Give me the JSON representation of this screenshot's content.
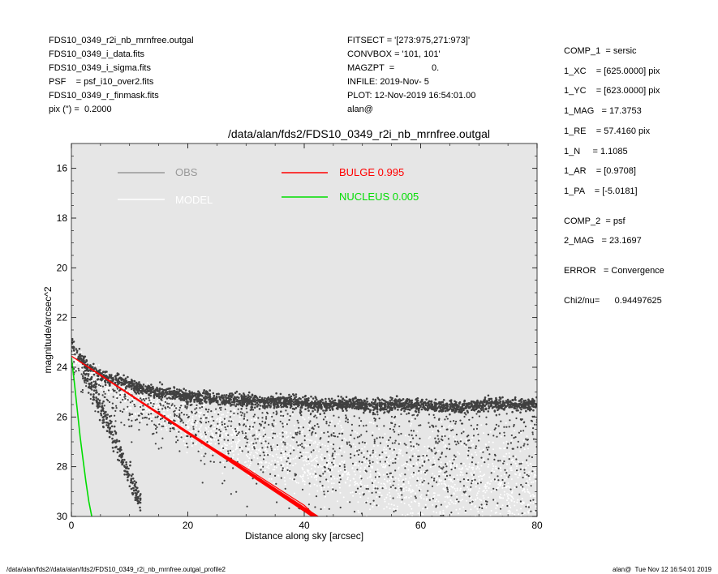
{
  "header_left": [
    "FDS10_0349_r2i_nb_mrnfree.outgal",
    "FDS10_0349_i_data.fits",
    "FDS10_0349_i_sigma.fits",
    "PSF    = psf_i10_over2.fits",
    "FDS10_0349_r_finmask.fits",
    "pix (\") =  0.2000"
  ],
  "header_mid": [
    "FITSECT = '[273:975,271:973]'",
    "CONVBOX = '101, 101'",
    "MAGZPT  =               0.",
    "INFILE: 2019-Nov- 5",
    "PLOT: 12-Nov-2019 16:54:01.00",
    "alan@"
  ],
  "header_right": {
    "comp1": [
      "COMP_1  = sersic",
      "1_XC    = [625.0000] pix",
      "1_YC    = [623.0000] pix",
      "1_MAG   = 17.3753",
      "1_RE    = 57.4160 pix",
      "1_N     = 1.1085",
      "1_AR    = [0.9708]",
      "1_PA    = [-5.0181]"
    ],
    "comp2": [
      "COMP_2  = psf",
      "2_MAG   = 23.1697"
    ],
    "error": "ERROR   = Convergence",
    "chi2": "Chi2/nu=      0.94497625"
  },
  "footer_left": "/data/alan/fds2//data/alan/fds2/FDS10_0349_r2i_nb_mrnfree.outgal_profile2",
  "footer_right": "alan@  Tue Nov 12 16:54:01 2019",
  "colors": {
    "plot_bg": "#e6e6e6",
    "obs": "#404040",
    "model": "#ffffff",
    "bulge": "#ff0000",
    "nucleus": "#00dd00",
    "obs_legend": "#999999"
  },
  "chart_data": {
    "type": "scatter",
    "title": "/data/alan/fds2/FDS10_0349_r2i_nb_mrnfree.outgal",
    "xlabel": "Distance along sky [arcsec]",
    "ylabel": "magnitude/arcsec^2",
    "xlim": [
      0,
      80
    ],
    "ylim": [
      30,
      15
    ],
    "y_inverted": true,
    "xticks": [
      0,
      20,
      40,
      60,
      80
    ],
    "yticks": [
      16,
      18,
      20,
      22,
      24,
      26,
      28,
      30
    ],
    "legend": [
      {
        "label": "OBS",
        "color": "#999999"
      },
      {
        "label": "MODEL",
        "color": "#ffffff"
      },
      {
        "label": "BULGE  0.995",
        "color": "#ff0000"
      },
      {
        "label": "NUCLEUS  0.005",
        "color": "#00dd00"
      }
    ],
    "series": [
      {
        "name": "OBS",
        "kind": "scatter",
        "x": [
          0.0,
          0.2,
          0.5,
          0.8,
          1.2,
          1.8,
          2.5,
          3.5,
          5,
          7,
          9,
          11,
          13,
          15,
          18,
          21,
          24,
          27,
          30,
          33,
          36,
          40,
          44,
          48,
          52,
          56,
          60,
          64,
          68,
          72,
          76,
          80
        ],
        "y": [
          23.0,
          23.1,
          23.3,
          23.4,
          23.6,
          23.7,
          23.9,
          24.1,
          24.3,
          24.5,
          24.6,
          24.8,
          24.9,
          25.0,
          25.1,
          25.2,
          25.25,
          25.3,
          25.35,
          25.4,
          25.4,
          25.45,
          25.5,
          25.5,
          25.55,
          25.5,
          25.55,
          25.6,
          25.6,
          25.5,
          25.5,
          25.5
        ]
      },
      {
        "name": "MODEL",
        "kind": "scatter",
        "x": [
          0,
          5,
          10,
          20,
          30,
          40,
          50,
          60,
          70,
          80
        ],
        "y": [
          23.6,
          24.5,
          25.3,
          26.3,
          27.0,
          27.6,
          28.1,
          28.5,
          28.9,
          29.2
        ]
      },
      {
        "name": "BULGE  0.995",
        "kind": "line",
        "x": [
          0,
          5,
          10,
          15,
          20,
          25,
          30,
          35,
          40,
          42.0
        ],
        "y": [
          23.55,
          24.3,
          25.1,
          25.85,
          26.6,
          27.35,
          28.05,
          28.8,
          29.55,
          30.0
        ]
      },
      {
        "name": "NUCLEUS  0.005",
        "kind": "line",
        "x": [
          0,
          0.5,
          1.0,
          1.5,
          2.0,
          2.5,
          3.0,
          3.5
        ],
        "y": [
          23.6,
          24.6,
          25.7,
          26.8,
          27.7,
          28.6,
          29.4,
          30.0
        ]
      }
    ]
  }
}
